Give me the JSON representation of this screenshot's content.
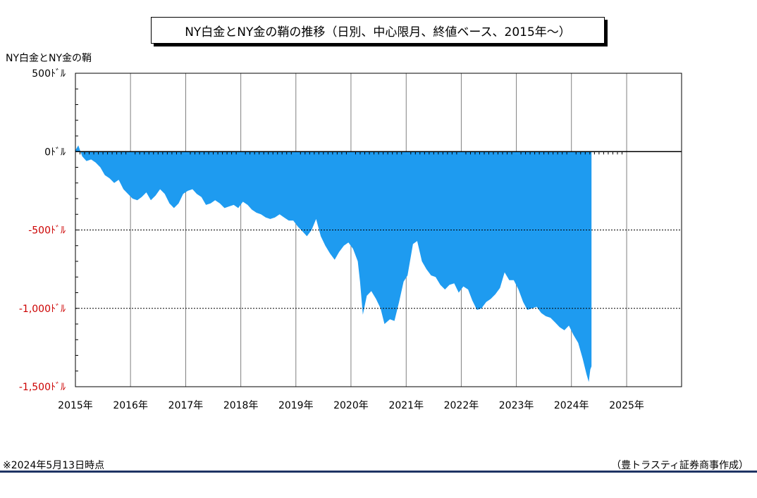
{
  "header": {
    "title": "NY白金とNY金の鞘の推移（日別、中心限月、終値ベース、2015年～）",
    "ylabel": "NY白金とNY金の鞘"
  },
  "footer": {
    "note": "※2024年5月13日時点",
    "credit": "（豊トラスティ証券商事作成）"
  },
  "colors": {
    "area": "#1e9bf0",
    "negative_tick": "#cc0000",
    "bottom_rule": "#1f3464"
  },
  "chart_data": {
    "type": "area",
    "title": "NY白金とNY金の鞘の推移（日別、中心限月、終値ベース、2015年～）",
    "ylabel": "NY白金とNY金の鞘",
    "xlabel": "",
    "x_range": [
      "2015-01-01",
      "2025-12-31"
    ],
    "ylim": [
      -1500,
      500
    ],
    "x_ticks": [
      "2015年",
      "2016年",
      "2017年",
      "2018年",
      "2019年",
      "2020年",
      "2021年",
      "2022年",
      "2023年",
      "2024年",
      "2025年"
    ],
    "y_ticks": [
      {
        "value": 500,
        "label": "500ﾄﾞﾙ"
      },
      {
        "value": 0,
        "label": "0ﾄﾞﾙ"
      },
      {
        "value": -500,
        "label": "-500ﾄﾞﾙ"
      },
      {
        "value": -1000,
        "label": "-1,000ﾄﾞﾙ"
      },
      {
        "value": -1500,
        "label": "-1,500ﾄﾞﾙ"
      }
    ],
    "grid": "vertical at year starts; dotted horizontal at -500 and -1000",
    "series": [
      {
        "values": [
          [
            "2015-01-02",
            10
          ],
          [
            "2015-01-20",
            40
          ],
          [
            "2015-02-15",
            -30
          ],
          [
            "2015-03-15",
            -60
          ],
          [
            "2015-04-15",
            -50
          ],
          [
            "2015-05-15",
            -70
          ],
          [
            "2015-06-15",
            -100
          ],
          [
            "2015-07-15",
            -150
          ],
          [
            "2015-08-15",
            -170
          ],
          [
            "2015-09-15",
            -200
          ],
          [
            "2015-10-15",
            -180
          ],
          [
            "2015-11-15",
            -240
          ],
          [
            "2015-12-15",
            -270
          ],
          [
            "2016-01-15",
            -300
          ],
          [
            "2016-02-15",
            -310
          ],
          [
            "2016-03-15",
            -290
          ],
          [
            "2016-04-15",
            -260
          ],
          [
            "2016-05-15",
            -310
          ],
          [
            "2016-06-15",
            -280
          ],
          [
            "2016-07-15",
            -240
          ],
          [
            "2016-08-15",
            -270
          ],
          [
            "2016-09-15",
            -330
          ],
          [
            "2016-10-15",
            -360
          ],
          [
            "2016-11-15",
            -330
          ],
          [
            "2016-12-15",
            -270
          ],
          [
            "2017-01-15",
            -250
          ],
          [
            "2017-02-15",
            -240
          ],
          [
            "2017-03-15",
            -270
          ],
          [
            "2017-04-15",
            -290
          ],
          [
            "2017-05-15",
            -340
          ],
          [
            "2017-06-15",
            -330
          ],
          [
            "2017-07-15",
            -310
          ],
          [
            "2017-08-15",
            -330
          ],
          [
            "2017-09-15",
            -360
          ],
          [
            "2017-10-15",
            -350
          ],
          [
            "2017-11-15",
            -340
          ],
          [
            "2017-12-15",
            -360
          ],
          [
            "2018-01-15",
            -320
          ],
          [
            "2018-02-15",
            -340
          ],
          [
            "2018-03-15",
            -370
          ],
          [
            "2018-04-15",
            -390
          ],
          [
            "2018-05-15",
            -400
          ],
          [
            "2018-06-15",
            -420
          ],
          [
            "2018-07-15",
            -430
          ],
          [
            "2018-08-15",
            -420
          ],
          [
            "2018-09-15",
            -400
          ],
          [
            "2018-10-15",
            -420
          ],
          [
            "2018-11-15",
            -440
          ],
          [
            "2018-12-15",
            -440
          ],
          [
            "2019-01-15",
            -480
          ],
          [
            "2019-02-15",
            -510
          ],
          [
            "2019-03-15",
            -540
          ],
          [
            "2019-04-15",
            -500
          ],
          [
            "2019-05-15",
            -430
          ],
          [
            "2019-06-15",
            -540
          ],
          [
            "2019-07-15",
            -600
          ],
          [
            "2019-08-15",
            -650
          ],
          [
            "2019-09-15",
            -690
          ],
          [
            "2019-10-15",
            -640
          ],
          [
            "2019-11-15",
            -600
          ],
          [
            "2019-12-15",
            -580
          ],
          [
            "2020-01-15",
            -620
          ],
          [
            "2020-02-15",
            -700
          ],
          [
            "2020-03-01",
            -830
          ],
          [
            "2020-03-20",
            -1040
          ],
          [
            "2020-04-15",
            -920
          ],
          [
            "2020-05-15",
            -890
          ],
          [
            "2020-06-15",
            -940
          ],
          [
            "2020-07-15",
            -1000
          ],
          [
            "2020-08-10",
            -1100
          ],
          [
            "2020-09-15",
            -1070
          ],
          [
            "2020-10-15",
            -1080
          ],
          [
            "2020-11-15",
            -960
          ],
          [
            "2020-12-15",
            -830
          ],
          [
            "2021-01-10",
            -790
          ],
          [
            "2021-02-15",
            -590
          ],
          [
            "2021-03-15",
            -570
          ],
          [
            "2021-04-15",
            -700
          ],
          [
            "2021-05-15",
            -750
          ],
          [
            "2021-06-15",
            -790
          ],
          [
            "2021-07-15",
            -800
          ],
          [
            "2021-08-15",
            -850
          ],
          [
            "2021-09-15",
            -880
          ],
          [
            "2021-10-15",
            -850
          ],
          [
            "2021-11-15",
            -840
          ],
          [
            "2021-12-15",
            -900
          ],
          [
            "2022-01-15",
            -860
          ],
          [
            "2022-02-15",
            -880
          ],
          [
            "2022-03-15",
            -950
          ],
          [
            "2022-04-15",
            -1010
          ],
          [
            "2022-05-15",
            -1000
          ],
          [
            "2022-06-15",
            -960
          ],
          [
            "2022-07-15",
            -940
          ],
          [
            "2022-08-15",
            -910
          ],
          [
            "2022-09-15",
            -870
          ],
          [
            "2022-10-15",
            -770
          ],
          [
            "2022-11-15",
            -820
          ],
          [
            "2022-12-15",
            -820
          ],
          [
            "2023-01-15",
            -880
          ],
          [
            "2023-02-15",
            -960
          ],
          [
            "2023-03-15",
            -1010
          ],
          [
            "2023-04-15",
            -1000
          ],
          [
            "2023-05-15",
            -990
          ],
          [
            "2023-06-15",
            -1030
          ],
          [
            "2023-07-15",
            -1050
          ],
          [
            "2023-08-15",
            -1060
          ],
          [
            "2023-09-15",
            -1090
          ],
          [
            "2023-10-15",
            -1120
          ],
          [
            "2023-11-15",
            -1140
          ],
          [
            "2023-12-15",
            -1110
          ],
          [
            "2024-01-15",
            -1170
          ],
          [
            "2024-02-15",
            -1220
          ],
          [
            "2024-03-15",
            -1320
          ],
          [
            "2024-04-10",
            -1420
          ],
          [
            "2024-04-25",
            -1470
          ],
          [
            "2024-05-05",
            -1390
          ],
          [
            "2024-05-13",
            -1370
          ]
        ]
      }
    ]
  }
}
